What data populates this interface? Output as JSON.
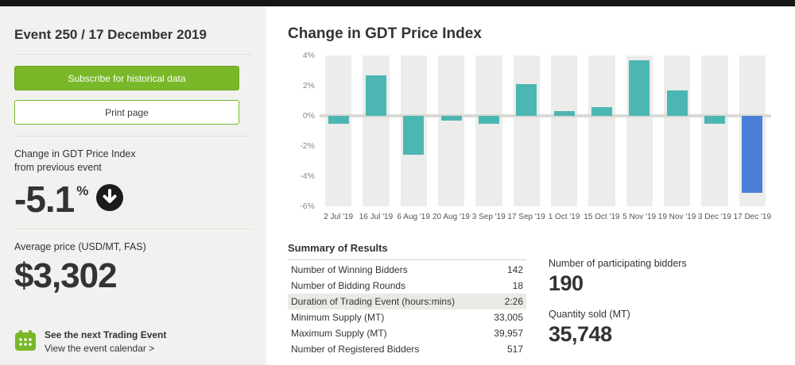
{
  "sidebar": {
    "title": "Event 250 / 17 December 2019",
    "subscribe_label": "Subscribe for historical data",
    "print_label": "Print page",
    "change_label_line1": "Change in GDT Price Index",
    "change_label_line2": "from previous event",
    "change_value": "-5.1",
    "change_unit": "%",
    "avg_price_label": "Average price (USD/MT, FAS)",
    "avg_price_value": "$3,302",
    "next_event_bold": "See the next Trading Event",
    "next_event_link": "View the event calendar >"
  },
  "main": {
    "chart_title": "Change in GDT Price Index",
    "summary_title": "Summary of Results",
    "summary_rows": [
      {
        "label": "Number of Winning Bidders",
        "value": "142"
      },
      {
        "label": "Number of Bidding Rounds",
        "value": "18"
      },
      {
        "label": "Duration of Trading Event (hours:mins)",
        "value": "2:26"
      },
      {
        "label": "Minimum Supply (MT)",
        "value": "33,005"
      },
      {
        "label": "Maximum Supply (MT)",
        "value": "39,957"
      },
      {
        "label": "Number of Registered Bidders",
        "value": "517"
      }
    ],
    "stats": [
      {
        "label": "Number of participating bidders",
        "value": "190"
      },
      {
        "label": "Quantity sold (MT)",
        "value": "35,748"
      }
    ]
  },
  "chart_data": {
    "type": "bar",
    "title": "Change in GDT Price Index",
    "categories": [
      "2 Jul '19",
      "16 Jul '19",
      "6 Aug '19",
      "20 Aug '19",
      "3 Sep '19",
      "17 Sep '19",
      "1 Oct '19",
      "15 Oct '19",
      "5 Nov '19",
      "19 Nov '19",
      "3 Dec '19",
      "17 Dec '19"
    ],
    "values": [
      -0.5,
      2.7,
      -2.6,
      -0.3,
      -0.5,
      2.1,
      0.3,
      0.6,
      3.7,
      1.7,
      -0.5,
      -5.1
    ],
    "ylim": [
      -6,
      4
    ],
    "yticks": [
      {
        "label": "4%",
        "value": 4
      },
      {
        "label": "2%",
        "value": 2
      },
      {
        "label": "0%",
        "value": 0
      },
      {
        "label": "-2%",
        "value": -2
      },
      {
        "label": "-4%",
        "value": -4
      },
      {
        "label": "-6%",
        "value": -6
      }
    ],
    "bar_color": "#4cb6b3",
    "highlight_color": "#4b7fd6",
    "highlight_index": 11,
    "legend": "none",
    "grid": "column-stripes"
  },
  "colors": {
    "accent_green": "#79b829",
    "teal_bar": "#4cb6b3",
    "blue_bar": "#4b7fd6",
    "sidebar_bg": "#f1f1ef"
  }
}
